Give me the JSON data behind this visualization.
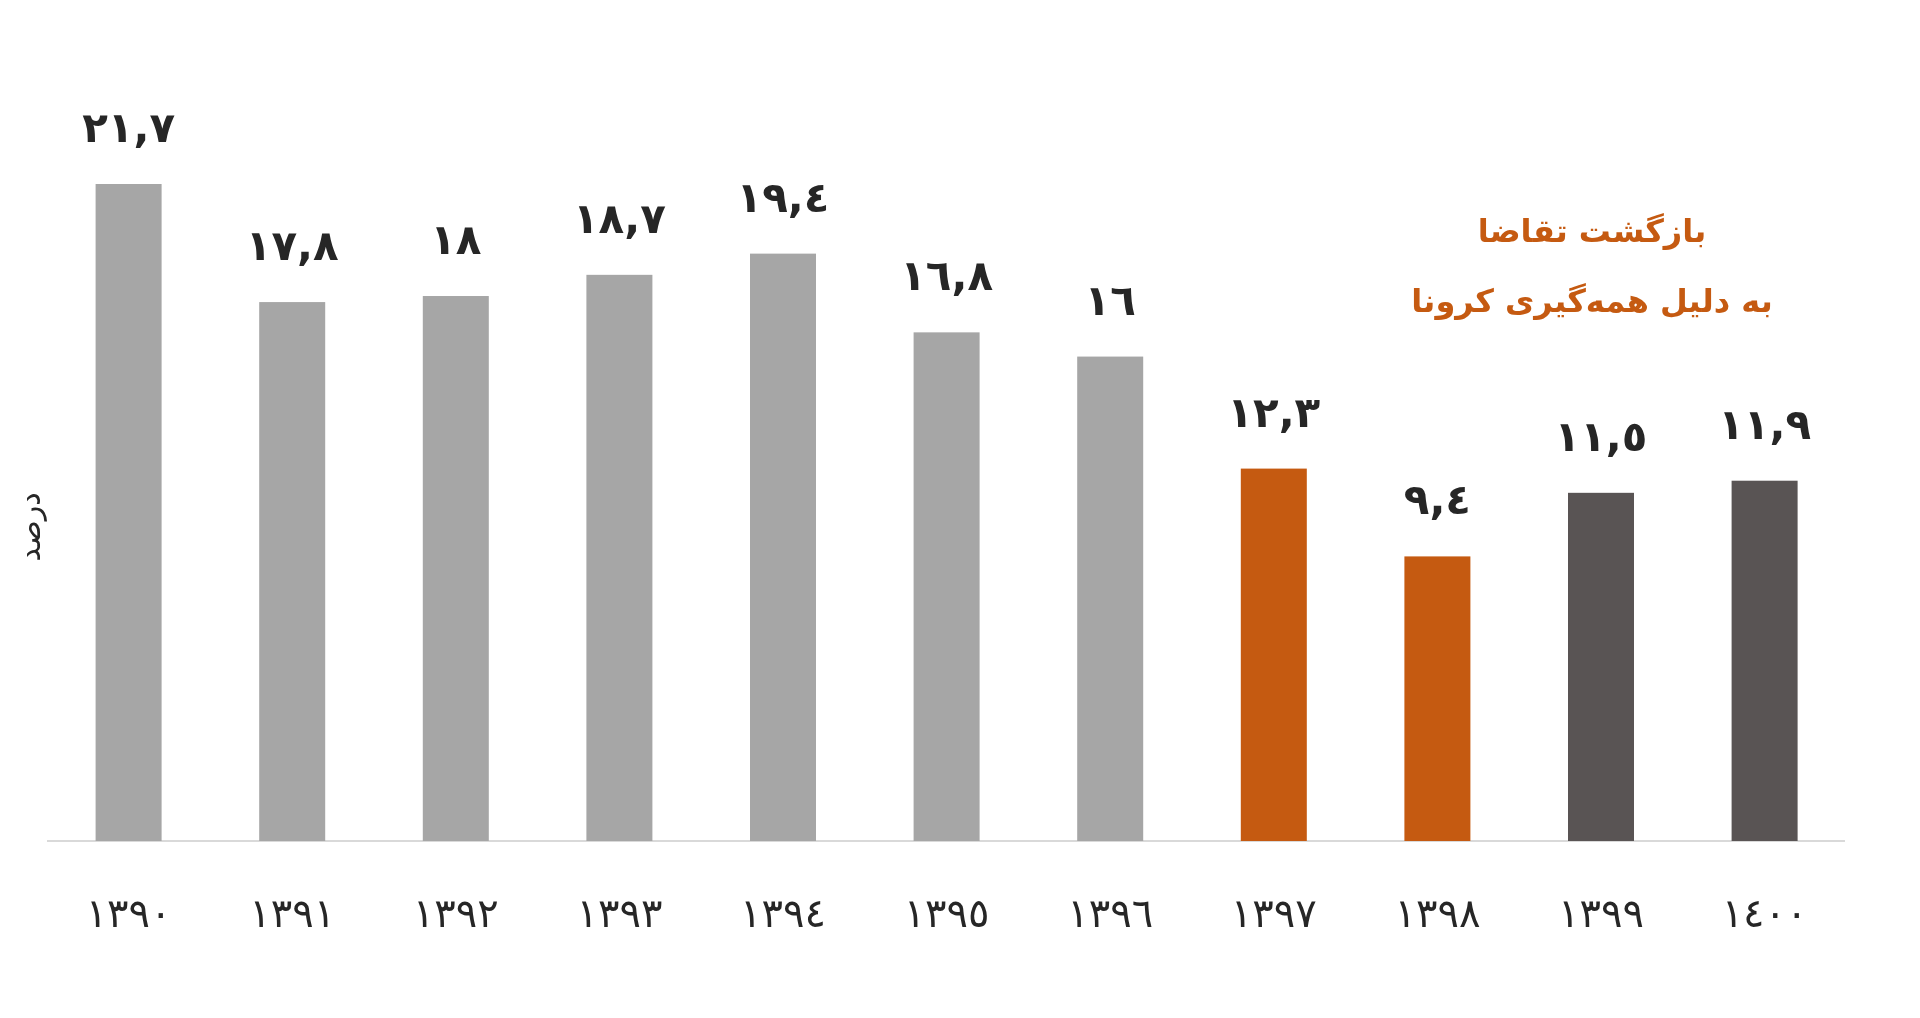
{
  "chart_data": {
    "type": "bar",
    "categories": [
      "١٣٩٠",
      "١٣٩١",
      "١٣٩٢",
      "١٣٩٣",
      "١٣٩٤",
      "١٣٩٥",
      "١٣٩٦",
      "١٣٩٧",
      "١٣٩٨",
      "١٣٩٩",
      "١٤٠٠"
    ],
    "values": [
      21.7,
      17.8,
      18,
      18.7,
      19.4,
      16.8,
      16,
      12.3,
      9.4,
      11.5,
      11.9
    ],
    "value_labels": [
      "٢١,٧",
      "١٧,٨",
      "١٨",
      "١٨,٧",
      "١٩,٤",
      "١٦,٨",
      "١٦",
      "١٢,٣",
      "٩,٤",
      "١١,٥",
      "١١,٩"
    ],
    "colors": [
      "#a6a6a6",
      "#a6a6a6",
      "#a6a6a6",
      "#a6a6a6",
      "#a6a6a6",
      "#a6a6a6",
      "#a6a6a6",
      "#c55a11",
      "#c55a11",
      "#595454",
      "#595454"
    ],
    "ylabel": "درصد",
    "annotations": [
      "بازگشت تقاضا",
      "به دلیل همه‌گیری کرونا"
    ],
    "tick_labels": "x"
  }
}
